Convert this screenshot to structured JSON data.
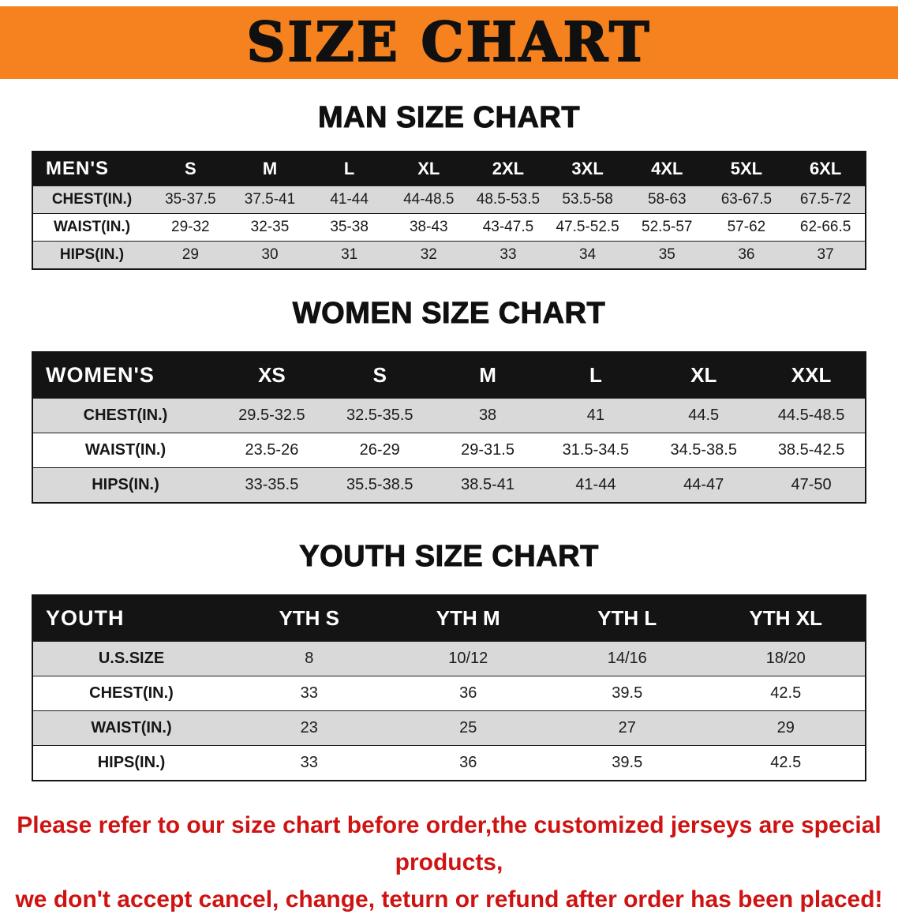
{
  "banner": {
    "title": "SIZE CHART"
  },
  "colors": {
    "banner_bg": "#f5821f",
    "header_bg": "#141414",
    "row_shaded": "#d9d9d9",
    "disclaimer_red": "#cf1212"
  },
  "sections": {
    "men": {
      "heading": "MAN SIZE CHART",
      "table": {
        "header": [
          "MEN'S",
          "S",
          "M",
          "L",
          "XL",
          "2XL",
          "3XL",
          "4XL",
          "5XL",
          "6XL"
        ],
        "rows": [
          {
            "label": "CHEST(IN.)",
            "values": [
              "35-37.5",
              "37.5-41",
              "41-44",
              "44-48.5",
              "48.5-53.5",
              "53.5-58",
              "58-63",
              "63-67.5",
              "67.5-72"
            ]
          },
          {
            "label": "WAIST(IN.)",
            "values": [
              "29-32",
              "32-35",
              "35-38",
              "38-43",
              "43-47.5",
              "47.5-52.5",
              "52.5-57",
              "57-62",
              "62-66.5"
            ]
          },
          {
            "label": "HIPS(IN.)",
            "values": [
              "29",
              "30",
              "31",
              "32",
              "33",
              "34",
              "35",
              "36",
              "37"
            ]
          }
        ]
      }
    },
    "women": {
      "heading": "WOMEN SIZE CHART",
      "table": {
        "header": [
          "WOMEN'S",
          "XS",
          "S",
          "M",
          "L",
          "XL",
          "XXL"
        ],
        "rows": [
          {
            "label": "CHEST(IN.)",
            "values": [
              "29.5-32.5",
              "32.5-35.5",
              "38",
              "41",
              "44.5",
              "44.5-48.5"
            ]
          },
          {
            "label": "WAIST(IN.)",
            "values": [
              "23.5-26",
              "26-29",
              "29-31.5",
              "31.5-34.5",
              "34.5-38.5",
              "38.5-42.5"
            ]
          },
          {
            "label": "HIPS(IN.)",
            "values": [
              "33-35.5",
              "35.5-38.5",
              "38.5-41",
              "41-44",
              "44-47",
              "47-50"
            ]
          }
        ]
      }
    },
    "youth": {
      "heading": "YOUTH SIZE CHART",
      "table": {
        "header": [
          "YOUTH",
          "YTH S",
          "YTH M",
          "YTH L",
          "YTH XL"
        ],
        "rows": [
          {
            "label": "U.S.SIZE",
            "values": [
              "8",
              "10/12",
              "14/16",
              "18/20"
            ]
          },
          {
            "label": "CHEST(IN.)",
            "values": [
              "33",
              "36",
              "39.5",
              "42.5"
            ]
          },
          {
            "label": "WAIST(IN.)",
            "values": [
              "23",
              "25",
              "27",
              "29"
            ]
          },
          {
            "label": "HIPS(IN.)",
            "values": [
              "33",
              "36",
              "39.5",
              "42.5"
            ]
          }
        ]
      }
    }
  },
  "disclaimer": {
    "line1": "Please refer to our size chart before order,the customized jerseys are special products,",
    "line2": "we don't accept cancel, change, teturn or refund after order has been placed!"
  }
}
